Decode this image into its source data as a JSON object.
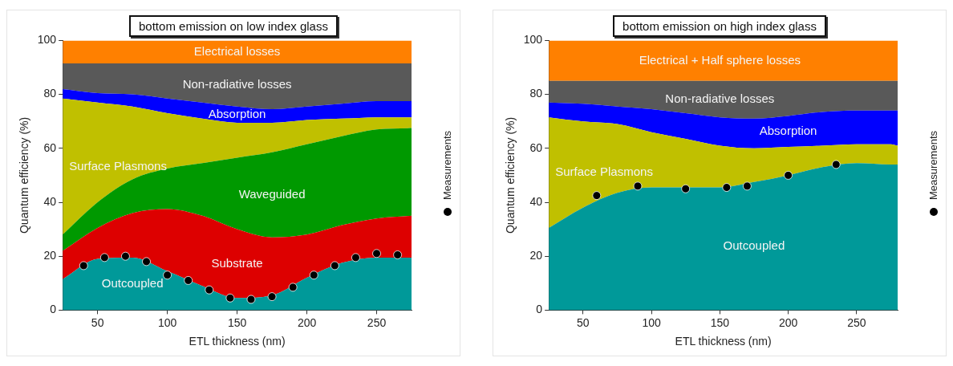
{
  "chart_data": [
    {
      "type": "area",
      "title": "bottom emission on low index glass",
      "xlabel": "ETL thickness (nm)",
      "ylabel": "Quantum efficiency (%)",
      "stacked": true,
      "legend": "right",
      "grid": false,
      "x": [
        25,
        50,
        75,
        100,
        125,
        150,
        175,
        200,
        225,
        250,
        275
      ],
      "xlim": [
        25,
        275
      ],
      "xticks": [
        50,
        100,
        150,
        200,
        250
      ],
      "ylim": [
        0,
        100
      ],
      "yticks": [
        0,
        20,
        40,
        60,
        80,
        100
      ],
      "series": [
        {
          "name": "Outcoupled",
          "color": "#009999",
          "values": [
            11.5,
            19,
            19.5,
            14.5,
            9,
            4.5,
            5.5,
            12,
            17.5,
            19.5,
            19.5
          ]
        },
        {
          "name": "Substrate",
          "color": "#dd0000",
          "values": [
            10.5,
            11.5,
            16.5,
            23,
            26,
            25.5,
            21.5,
            16,
            14,
            14.5,
            15.5
          ]
        },
        {
          "name": "Waveguided",
          "color": "#009900",
          "values": [
            6,
            9.5,
            12.5,
            15,
            19.5,
            26.5,
            31.5,
            33.5,
            33,
            33,
            32.5
          ]
        },
        {
          "name": "Surface Plasmons",
          "color": "#c0c000",
          "values": [
            50.5,
            37,
            27,
            20.5,
            16.5,
            13,
            11,
            9,
            6.5,
            4.5,
            4
          ]
        },
        {
          "name": "Absorption",
          "color": "#0000ff",
          "values": [
            3.5,
            3.5,
            4.5,
            5.5,
            6,
            6,
            5,
            5,
            5.5,
            6,
            6
          ]
        },
        {
          "name": "Non-radiative losses",
          "color": "#595959",
          "values": [
            9.5,
            11,
            11.5,
            13,
            14.5,
            16,
            17,
            16,
            15,
            14,
            14
          ]
        },
        {
          "name": "Electrical losses",
          "color": "#ff8000",
          "values": [
            8.5,
            8.5,
            8.5,
            8.5,
            8.5,
            8.5,
            8.5,
            8.5,
            8.5,
            8.5,
            8.5
          ]
        },
        {
          "name": "Measurements",
          "type": "scatter",
          "marker": "circle",
          "color": "#000000",
          "x": [
            40,
            55,
            70,
            85,
            100,
            115,
            130,
            145,
            160,
            175,
            190,
            205,
            220,
            235,
            250,
            265
          ],
          "values": [
            16.5,
            19.5,
            20,
            18,
            13,
            11,
            7.5,
            4.5,
            4,
            5,
            8.5,
            13,
            16.5,
            19.5,
            21,
            20.5
          ]
        }
      ]
    },
    {
      "type": "area",
      "title": "bottom emission on high index glass",
      "xlabel": "ETL thickness (nm)",
      "ylabel": "Quantum efficiency (%)",
      "stacked": true,
      "legend": "right",
      "grid": false,
      "x": [
        25,
        50,
        75,
        100,
        125,
        150,
        175,
        200,
        225,
        250,
        275,
        280
      ],
      "xlim": [
        25,
        280
      ],
      "xticks": [
        50,
        100,
        150,
        200,
        250
      ],
      "ylim": [
        0,
        100
      ],
      "yticks": [
        0,
        20,
        40,
        60,
        80,
        100
      ],
      "series": [
        {
          "name": "Outcoupled",
          "color": "#009999",
          "values": [
            30.5,
            38,
            43.5,
            45.5,
            45.5,
            45.5,
            47.5,
            50,
            53,
            54.5,
            54,
            54
          ]
        },
        {
          "name": "Surface Plasmons",
          "color": "#c0c000",
          "values": [
            41,
            32,
            25.5,
            20.5,
            18,
            15.5,
            12.5,
            10.5,
            8,
            7,
            7.5,
            7
          ]
        },
        {
          "name": "Absorption",
          "color": "#0000ff",
          "values": [
            5.5,
            6.5,
            6.5,
            8.5,
            9.5,
            10.5,
            11,
            11.5,
            12.5,
            12.5,
            12.5,
            13
          ]
        },
        {
          "name": "Non-radiative losses",
          "color": "#595959",
          "values": [
            8,
            8.5,
            9.5,
            10.5,
            12,
            13.5,
            14,
            13,
            11.5,
            11,
            11,
            11
          ]
        },
        {
          "name": "Electrical + Half sphere losses",
          "color": "#ff8000",
          "values": [
            15,
            15,
            15,
            15,
            15,
            15,
            15,
            15,
            15,
            15,
            15,
            15
          ]
        },
        {
          "name": "Measurements",
          "type": "scatter",
          "marker": "circle",
          "color": "#000000",
          "x": [
            60,
            90,
            125,
            155,
            170,
            200,
            235
          ],
          "values": [
            42.5,
            46,
            45,
            45.5,
            46,
            50,
            54
          ]
        }
      ]
    }
  ]
}
